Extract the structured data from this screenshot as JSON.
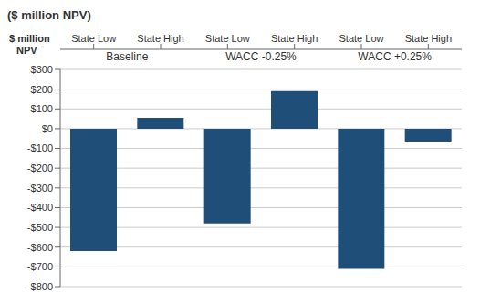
{
  "chart_data": {
    "type": "bar",
    "title": "($ million NPV)",
    "ylabel": "$ million\nNPV",
    "group_labels": [
      "Baseline",
      "WACC -0.25%",
      "WACC +0.25%"
    ],
    "categories": [
      "State Low",
      "State High",
      "State Low",
      "State High",
      "State Low",
      "State High"
    ],
    "values": [
      -620,
      55,
      -480,
      190,
      -710,
      -65
    ],
    "color": "#1F4E79",
    "ylim": [
      -800,
      300
    ],
    "yticks": [
      {
        "value": -800,
        "label": "-$800"
      },
      {
        "value": -700,
        "label": "-$700"
      },
      {
        "value": -600,
        "label": "-$600"
      },
      {
        "value": -500,
        "label": "-$500"
      },
      {
        "value": -400,
        "label": "-$400"
      },
      {
        "value": -300,
        "label": "-$300"
      },
      {
        "value": -200,
        "label": "-$200"
      },
      {
        "value": -100,
        "label": "-$100"
      },
      {
        "value": 0,
        "label": "$0"
      },
      {
        "value": 100,
        "label": "$100"
      },
      {
        "value": 200,
        "label": "$200"
      },
      {
        "value": 300,
        "label": "$300"
      }
    ],
    "grid": true
  }
}
